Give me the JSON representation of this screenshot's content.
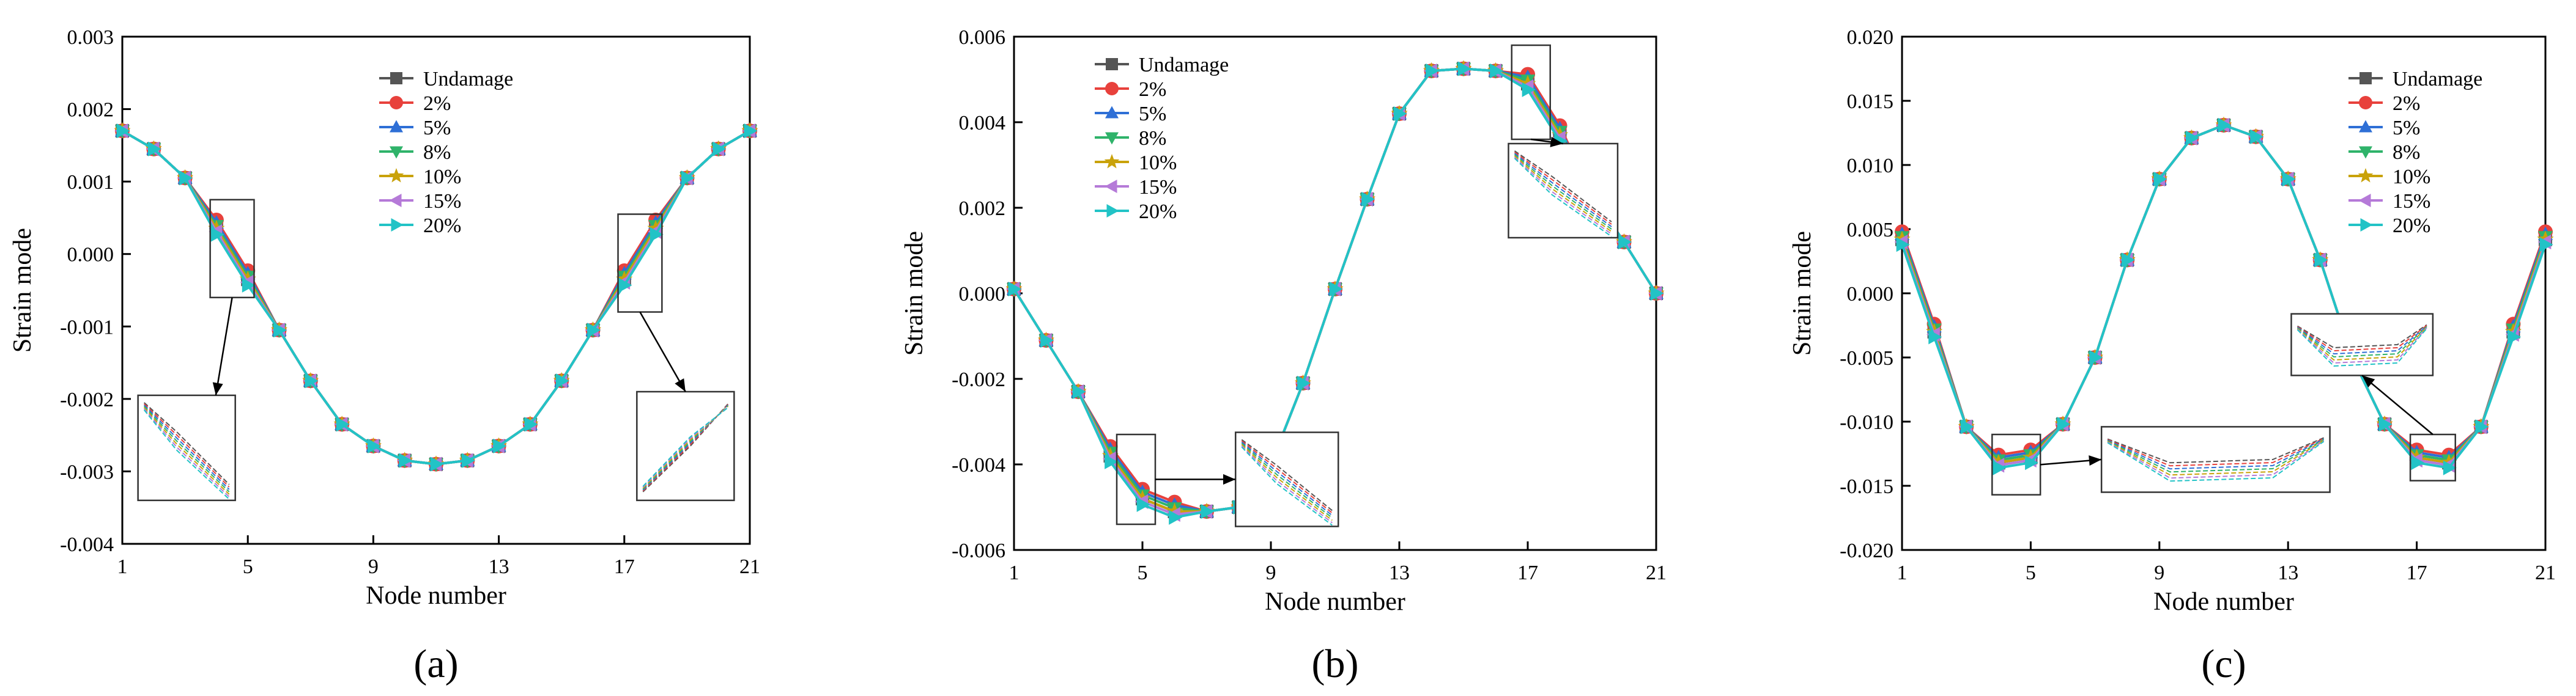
{
  "series_styles": [
    {
      "name": "Undamage",
      "color": "#555555",
      "marker": "square"
    },
    {
      "name": "2%",
      "color": "#e8413c",
      "marker": "circle"
    },
    {
      "name": "5%",
      "color": "#2e6fd6",
      "marker": "triangle-up"
    },
    {
      "name": "8%",
      "color": "#2fb36a",
      "marker": "triangle-down"
    },
    {
      "name": "10%",
      "color": "#c9a20a",
      "marker": "star"
    },
    {
      "name": "15%",
      "color": "#b57ad8",
      "marker": "triangle-left"
    },
    {
      "name": "20%",
      "color": "#22c3c6",
      "marker": "triangle-right"
    }
  ],
  "chart_data": [
    {
      "type": "line",
      "panel_label": "(a)",
      "xlabel": "Node number",
      "ylabel": "Strain mode",
      "xlim": [
        1,
        21
      ],
      "ylim": [
        -0.004,
        0.003
      ],
      "xticks": [
        1,
        5,
        9,
        13,
        17,
        21
      ],
      "yticks": [
        -0.004,
        -0.003,
        -0.002,
        -0.001,
        0.0,
        0.001,
        0.002,
        0.003
      ],
      "ytick_labels": [
        "-0.004",
        "-0.003",
        "-0.002",
        "-0.001",
        "0.000",
        "0.001",
        "0.002",
        "0.003"
      ],
      "legend_position": "top-center",
      "x": [
        1,
        2,
        3,
        4,
        5,
        6,
        7,
        8,
        9,
        10,
        11,
        12,
        13,
        14,
        15,
        16,
        17,
        18,
        19,
        20,
        21
      ],
      "base": [
        0.0017,
        0.00145,
        0.00105,
        0.00035,
        -0.00035,
        -0.00105,
        -0.00175,
        -0.00235,
        -0.00265,
        -0.00285,
        -0.0029,
        -0.00285,
        -0.00265,
        -0.00235,
        -0.00175,
        -0.00105,
        -0.00035,
        0.00035,
        0.00105,
        0.00145,
        0.0017
      ],
      "perturbation": {
        "nodes": [
          4,
          5,
          17,
          18
        ],
        "offsets": [
          0,
          0.00012,
          8e-05,
          4e-05,
          0,
          -4e-05,
          -8e-05
        ]
      },
      "zooms": [
        {
          "box_x": [
            3.8,
            5.2
          ],
          "box_y": [
            -0.0006,
            0.00075
          ],
          "inset_x": [
            1.5,
            4.6
          ],
          "inset_y": [
            -0.0034,
            -0.00195
          ],
          "shape": "descending"
        },
        {
          "box_x": [
            16.8,
            18.2
          ],
          "box_y": [
            -0.0008,
            0.00055
          ],
          "inset_x": [
            17.4,
            20.5
          ],
          "inset_y": [
            -0.0034,
            -0.0019
          ],
          "shape": "ascending"
        }
      ]
    },
    {
      "type": "line",
      "panel_label": "(b)",
      "xlabel": "Node number",
      "ylabel": "Strain mode",
      "xlim": [
        1,
        21
      ],
      "ylim": [
        -0.006,
        0.006
      ],
      "xticks": [
        1,
        5,
        9,
        13,
        17,
        21
      ],
      "yticks": [
        -0.006,
        -0.004,
        -0.002,
        0.0,
        0.002,
        0.004,
        0.006
      ],
      "ytick_labels": [
        "-0.006",
        "-0.004",
        "-0.002",
        "0.000",
        "0.002",
        "0.004",
        "0.006"
      ],
      "legend_position": "top-left",
      "x": [
        1,
        2,
        3,
        4,
        5,
        6,
        7,
        8,
        9,
        10,
        11,
        12,
        13,
        14,
        15,
        16,
        17,
        18,
        19,
        20,
        21
      ],
      "base": [
        0.0001,
        -0.0011,
        -0.0023,
        -0.0038,
        -0.0048,
        -0.0051,
        -0.0051,
        -0.005,
        -0.004,
        -0.0021,
        0.0001,
        0.0022,
        0.0042,
        0.0052,
        0.00525,
        0.0052,
        0.0049,
        0.0037,
        0.0023,
        0.0012,
        0.0
      ],
      "perturbation": {
        "nodes": [
          4,
          5,
          6,
          17,
          18
        ],
        "offsets": [
          0,
          0.00022,
          0.00015,
          8e-05,
          0,
          -7e-05,
          -0.00014
        ]
      },
      "zooms": [
        {
          "box_x": [
            4.2,
            5.4
          ],
          "box_y": [
            -0.0054,
            -0.0033
          ],
          "inset_x": [
            7.9,
            11.1
          ],
          "inset_y": [
            -0.00545,
            -0.00325
          ],
          "shape": "descending"
        },
        {
          "box_x": [
            16.5,
            17.7
          ],
          "box_y": [
            0.0036,
            0.0058
          ],
          "inset_x": [
            16.4,
            19.8
          ],
          "inset_y": [
            0.0013,
            0.0035
          ],
          "shape": "descending"
        }
      ]
    },
    {
      "type": "line",
      "panel_label": "(c)",
      "xlabel": "Node number",
      "ylabel": "Strain mode",
      "xlim": [
        1,
        21
      ],
      "ylim": [
        -0.02,
        0.02
      ],
      "xticks": [
        1,
        5,
        9,
        13,
        17,
        21
      ],
      "yticks": [
        -0.02,
        -0.015,
        -0.01,
        -0.005,
        0.0,
        0.005,
        0.01,
        0.015,
        0.02
      ],
      "ytick_labels": [
        "-0.020",
        "-0.015",
        "-0.010",
        "-0.005",
        "0.000",
        "0.005",
        "0.010",
        "0.015",
        "0.020"
      ],
      "legend_position": "top-right",
      "x": [
        1,
        2,
        3,
        4,
        5,
        6,
        7,
        8,
        9,
        10,
        11,
        12,
        13,
        14,
        15,
        16,
        17,
        18,
        19,
        20,
        21
      ],
      "base": [
        0.0042,
        -0.003,
        -0.0104,
        -0.0132,
        -0.0128,
        -0.0102,
        -0.005,
        0.0026,
        0.0089,
        0.0121,
        0.0131,
        0.0122,
        0.0089,
        0.0026,
        -0.005,
        -0.0102,
        -0.0128,
        -0.0132,
        -0.0104,
        -0.003,
        0.0042
      ],
      "perturbation": {
        "nodes": [
          1,
          2,
          4,
          5,
          17,
          18,
          20,
          21
        ],
        "offsets": [
          0,
          0.0006,
          0.0004,
          0.0002,
          0,
          -0.0002,
          -0.0004
        ]
      },
      "zooms": [
        {
          "box_x": [
            3.8,
            5.3
          ],
          "box_y": [
            -0.0157,
            -0.011
          ],
          "inset_x": [
            7.2,
            14.3
          ],
          "inset_y": [
            -0.0155,
            -0.0104
          ],
          "shape": "valley"
        },
        {
          "box_x": [
            16.8,
            18.2
          ],
          "box_y": [
            -0.0146,
            -0.011
          ],
          "inset_x": [
            13.1,
            17.5
          ],
          "inset_y": [
            -0.0064,
            -0.0016
          ],
          "shape": "valley"
        }
      ]
    }
  ]
}
